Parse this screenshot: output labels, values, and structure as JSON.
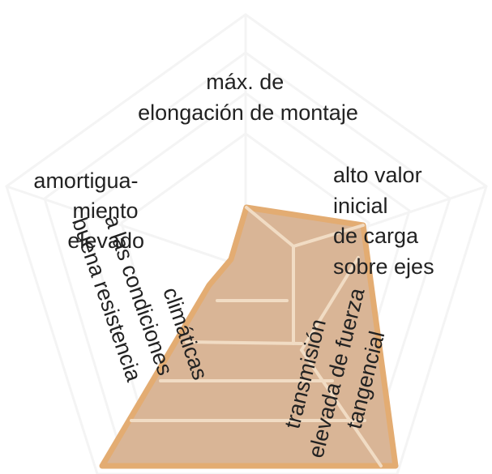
{
  "colors": {
    "background_grid": "#f4f4f4",
    "fill": "#d9b596",
    "fill_outline": "#e3ac72",
    "inner_lines": "#f1dcc4",
    "text": "#222222"
  },
  "labels": {
    "top": [
      "máx. de",
      "elongación de montaje"
    ],
    "left": [
      "amortigua-",
      "miento",
      "elevado"
    ],
    "right": [
      "alto valor",
      "inicial",
      "de carga",
      "sobre ejes"
    ],
    "lower_left": [
      "buena resistencia",
      "a las condiciones",
      "climáticas"
    ],
    "lower_right": [
      "transmisión",
      "elevada de fuerza",
      "tangencial"
    ]
  }
}
